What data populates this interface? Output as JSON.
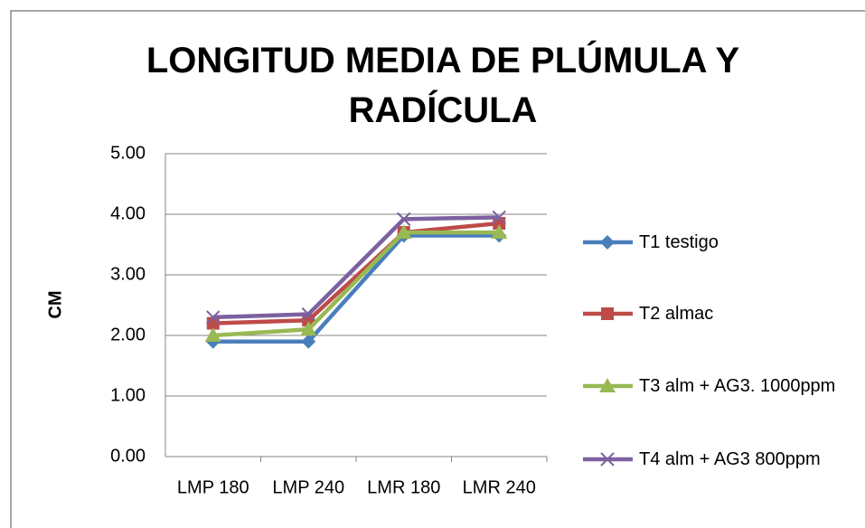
{
  "chart_data": {
    "type": "line",
    "title": "LONGITUD MEDIA DE PLÚMULA Y RADÍCULA",
    "ylabel": "CM",
    "categories": [
      "LMP 180",
      "LMP 240",
      "LMR 180",
      "LMR 240"
    ],
    "series": [
      {
        "name": "T1 testigo",
        "color": "#4a7ebb",
        "marker": "diamond",
        "values": [
          1.9,
          1.9,
          3.65,
          3.65
        ]
      },
      {
        "name": "T2 almac",
        "color": "#be4b48",
        "marker": "square",
        "values": [
          2.2,
          2.25,
          3.7,
          3.85
        ]
      },
      {
        "name": "T3 alm + AG3. 1000ppm",
        "color": "#98b954",
        "marker": "triangle",
        "values": [
          2.0,
          2.1,
          3.7,
          3.7
        ]
      },
      {
        "name": "T4 alm + AG3 800ppm",
        "color": "#7d60a0",
        "marker": "x",
        "values": [
          2.3,
          2.35,
          3.92,
          3.95
        ]
      }
    ],
    "ylim": [
      0,
      5
    ],
    "yticks": [
      {
        "value": 0,
        "label": "0.00"
      },
      {
        "value": 1,
        "label": "1.00"
      },
      {
        "value": 2,
        "label": "2.00"
      },
      {
        "value": 3,
        "label": "3.00"
      },
      {
        "value": 4,
        "label": "4.00"
      },
      {
        "value": 5,
        "label": "5.00"
      }
    ],
    "grid": true,
    "legend": "right"
  }
}
